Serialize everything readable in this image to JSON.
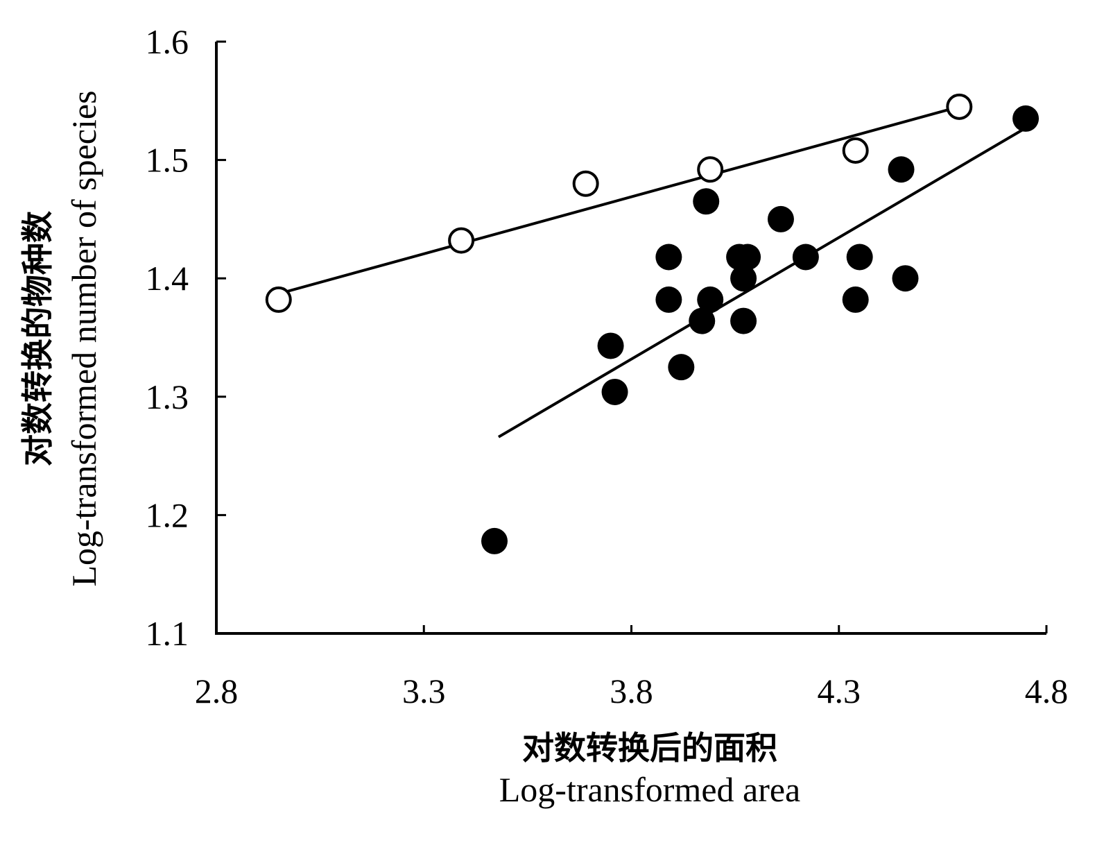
{
  "chart_data": {
    "type": "scatter",
    "xlabel_cn": "对数转换后的面积",
    "xlabel": "Log-transformed area",
    "ylabel_cn": "对数转换的物种数",
    "ylabel": "Log-transformed number of species",
    "xlim": [
      2.8,
      4.8
    ],
    "ylim": [
      1.1,
      1.6
    ],
    "x_ticks": [
      "2.8",
      "3.3",
      "3.8",
      "4.3",
      "4.8"
    ],
    "y_ticks": [
      "1.1",
      "1.2",
      "1.3",
      "1.4",
      "1.5",
      "1.6"
    ],
    "grid": false,
    "legend": "none",
    "series": [
      {
        "marker": "open-circle",
        "points": [
          {
            "x": 2.95,
            "y": 1.382
          },
          {
            "x": 3.39,
            "y": 1.432
          },
          {
            "x": 3.69,
            "y": 1.48
          },
          {
            "x": 3.99,
            "y": 1.492
          },
          {
            "x": 4.34,
            "y": 1.508
          },
          {
            "x": 4.59,
            "y": 1.545
          }
        ],
        "trendline": {
          "x": [
            2.95,
            4.59
          ],
          "y": [
            1.387,
            1.545
          ]
        }
      },
      {
        "marker": "filled-circle",
        "points": [
          {
            "x": 3.47,
            "y": 1.178
          },
          {
            "x": 3.75,
            "y": 1.343
          },
          {
            "x": 3.76,
            "y": 1.304
          },
          {
            "x": 3.89,
            "y": 1.418
          },
          {
            "x": 3.89,
            "y": 1.382
          },
          {
            "x": 3.92,
            "y": 1.325
          },
          {
            "x": 3.97,
            "y": 1.364
          },
          {
            "x": 3.98,
            "y": 1.465
          },
          {
            "x": 3.99,
            "y": 1.382
          },
          {
            "x": 4.06,
            "y": 1.418
          },
          {
            "x": 4.08,
            "y": 1.418
          },
          {
            "x": 4.07,
            "y": 1.4
          },
          {
            "x": 4.07,
            "y": 1.364
          },
          {
            "x": 4.16,
            "y": 1.45
          },
          {
            "x": 4.22,
            "y": 1.418
          },
          {
            "x": 4.34,
            "y": 1.382
          },
          {
            "x": 4.35,
            "y": 1.418
          },
          {
            "x": 4.45,
            "y": 1.492
          },
          {
            "x": 4.46,
            "y": 1.4
          },
          {
            "x": 4.75,
            "y": 1.535
          }
        ],
        "trendline": {
          "x": [
            3.48,
            4.75
          ],
          "y": [
            1.266,
            1.527
          ]
        }
      }
    ],
    "colors": {
      "axis": "#000000",
      "marker": "#000000",
      "background": "#ffffff"
    }
  }
}
